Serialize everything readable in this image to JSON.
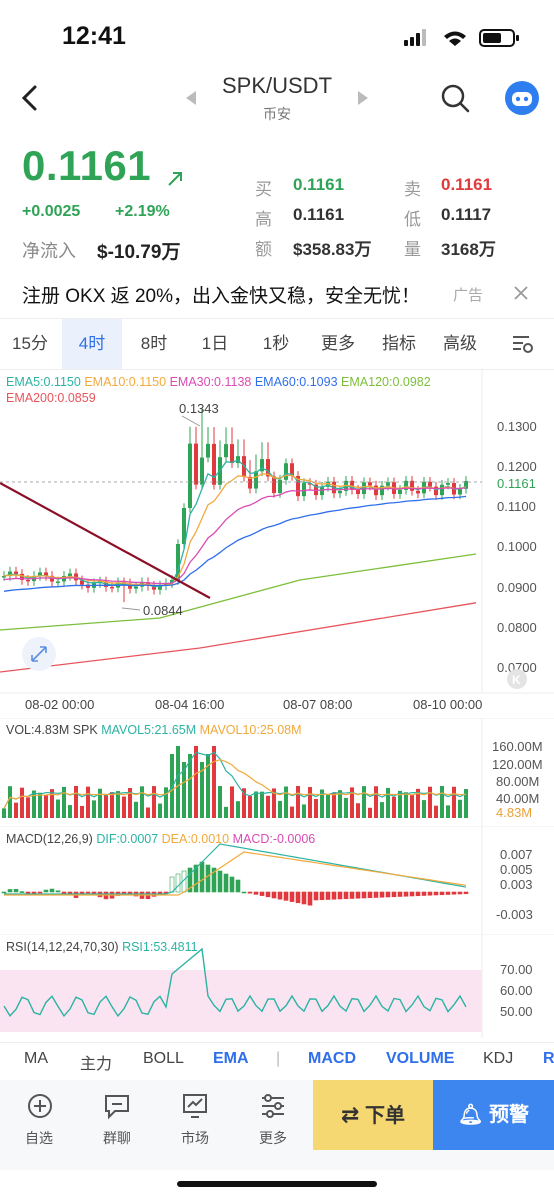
{
  "status_bar": {
    "time": "12:41"
  },
  "nav": {
    "pair": "SPK/USDT",
    "exchange": "币安"
  },
  "ticker": {
    "price": "0.1161",
    "change": "+0.0025",
    "change_pct": "+2.19%",
    "net_inflow_label": "净流入",
    "net_inflow_value": "$-10.79万",
    "buy_label": "买",
    "buy_value": "0.1161",
    "sell_label": "卖",
    "sell_value": "0.1161",
    "high_label": "高",
    "high_value": "0.1161",
    "low_label": "低",
    "low_value": "0.1117",
    "amount_label": "额",
    "amount_value": "$358.83万",
    "volume_label": "量",
    "volume_value": "3168万"
  },
  "ad": {
    "text": "注册 OKX 返 20%，出入金快又稳，安全无忧！",
    "tag": "广告"
  },
  "timeframes": {
    "tabs": [
      "15分",
      "4时",
      "8时",
      "1日",
      "1秒",
      "更多",
      "指标",
      "高级"
    ],
    "active": "4时"
  },
  "main_chart": {
    "legend": {
      "ema5": "EMA5:0.1150",
      "ema10": "EMA10:0.1150",
      "ema30": "EMA30:0.1138",
      "ema60": "EMA60:0.1093",
      "ema120": "EMA120:0.0982",
      "ema200": "EMA200:0.0859"
    },
    "y_ticks": [
      "0.1300",
      "0.1200",
      "0.1100",
      "0.1000",
      "0.0900",
      "0.0800",
      "0.0700"
    ],
    "current_price_label": "0.1161",
    "high_marker": "0.1343",
    "low_marker": "0.0844",
    "x_ticks": [
      "08-02 00:00",
      "08-04 16:00",
      "08-07 08:00",
      "08-10 00:00"
    ],
    "colors": {
      "up": "#2fa356",
      "down": "#e0393e",
      "ema5": "#2bb3a3",
      "ema10": "#f2a93b",
      "ema30": "#d94cb4",
      "ema60": "#2f6fea",
      "ema120": "#7cbf3a",
      "ema200": "#e8545b"
    }
  },
  "volume_panel": {
    "legend": {
      "vol": "VOL:4.83M SPK",
      "mavol5": "MAVOL5:21.65M",
      "mavol10": "MAVOL10:25.08M"
    },
    "y_ticks": [
      "160.00M",
      "120.00M",
      "80.00M",
      "40.00M"
    ],
    "current": "4.83M"
  },
  "macd_panel": {
    "legend": {
      "params": "MACD(12,26,9)",
      "dif": "DIF:0.0007",
      "dea": "DEA:0.0010",
      "macd": "MACD:-0.0006"
    },
    "y_ticks": [
      "0.007",
      "0.005",
      "0.003",
      "-0.003"
    ]
  },
  "rsi_panel": {
    "legend": {
      "params": "RSI(14,12,24,70,30)",
      "rsi1": "RSI1:53.4811"
    },
    "y_ticks": [
      "70.00",
      "60.00",
      "50.00"
    ]
  },
  "indicators": [
    "MA",
    "主力",
    "BOLL",
    "EMA",
    "MACD",
    "VOLUME",
    "KDJ",
    "R"
  ],
  "toolbar": {
    "items": [
      "自选",
      "群聊",
      "市场",
      "更多"
    ],
    "order": "下单",
    "alert": "预警"
  }
}
